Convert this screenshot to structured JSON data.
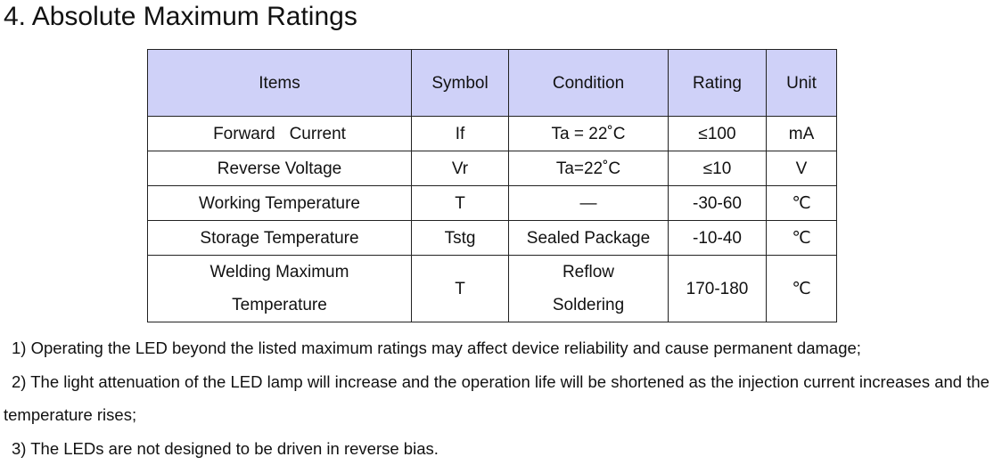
{
  "header": {
    "title": "4. Absolute Maximum Ratings"
  },
  "table": {
    "columns": [
      "Items",
      "Symbol",
      "Condition",
      "Rating",
      "Unit"
    ],
    "rows": [
      [
        "Forward   Current",
        "If",
        "Ta = 22˚C",
        "≤100",
        "mA"
      ],
      [
        "Reverse Voltage",
        "Vr",
        "Ta=22˚C",
        "≤10",
        "V"
      ],
      [
        "Working Temperature",
        "T",
        "—",
        "-30-60",
        "℃"
      ],
      [
        "Storage Temperature",
        "Tstg",
        "Sealed Package",
        "-10-40",
        "℃"
      ],
      [
        "Welding Maximum\nTemperature",
        "T",
        "Reflow\nSoldering",
        "170-180",
        "℃"
      ]
    ]
  },
  "notes": [
    "1) Operating the LED beyond the listed maximum ratings may affect device reliability and cause permanent damage;",
    "2) The light attenuation of the LED lamp will increase and the operation life will be shortened as the injection current increases and the temperature rises;",
    "3) The LEDs are not designed to be driven in reverse bias."
  ]
}
